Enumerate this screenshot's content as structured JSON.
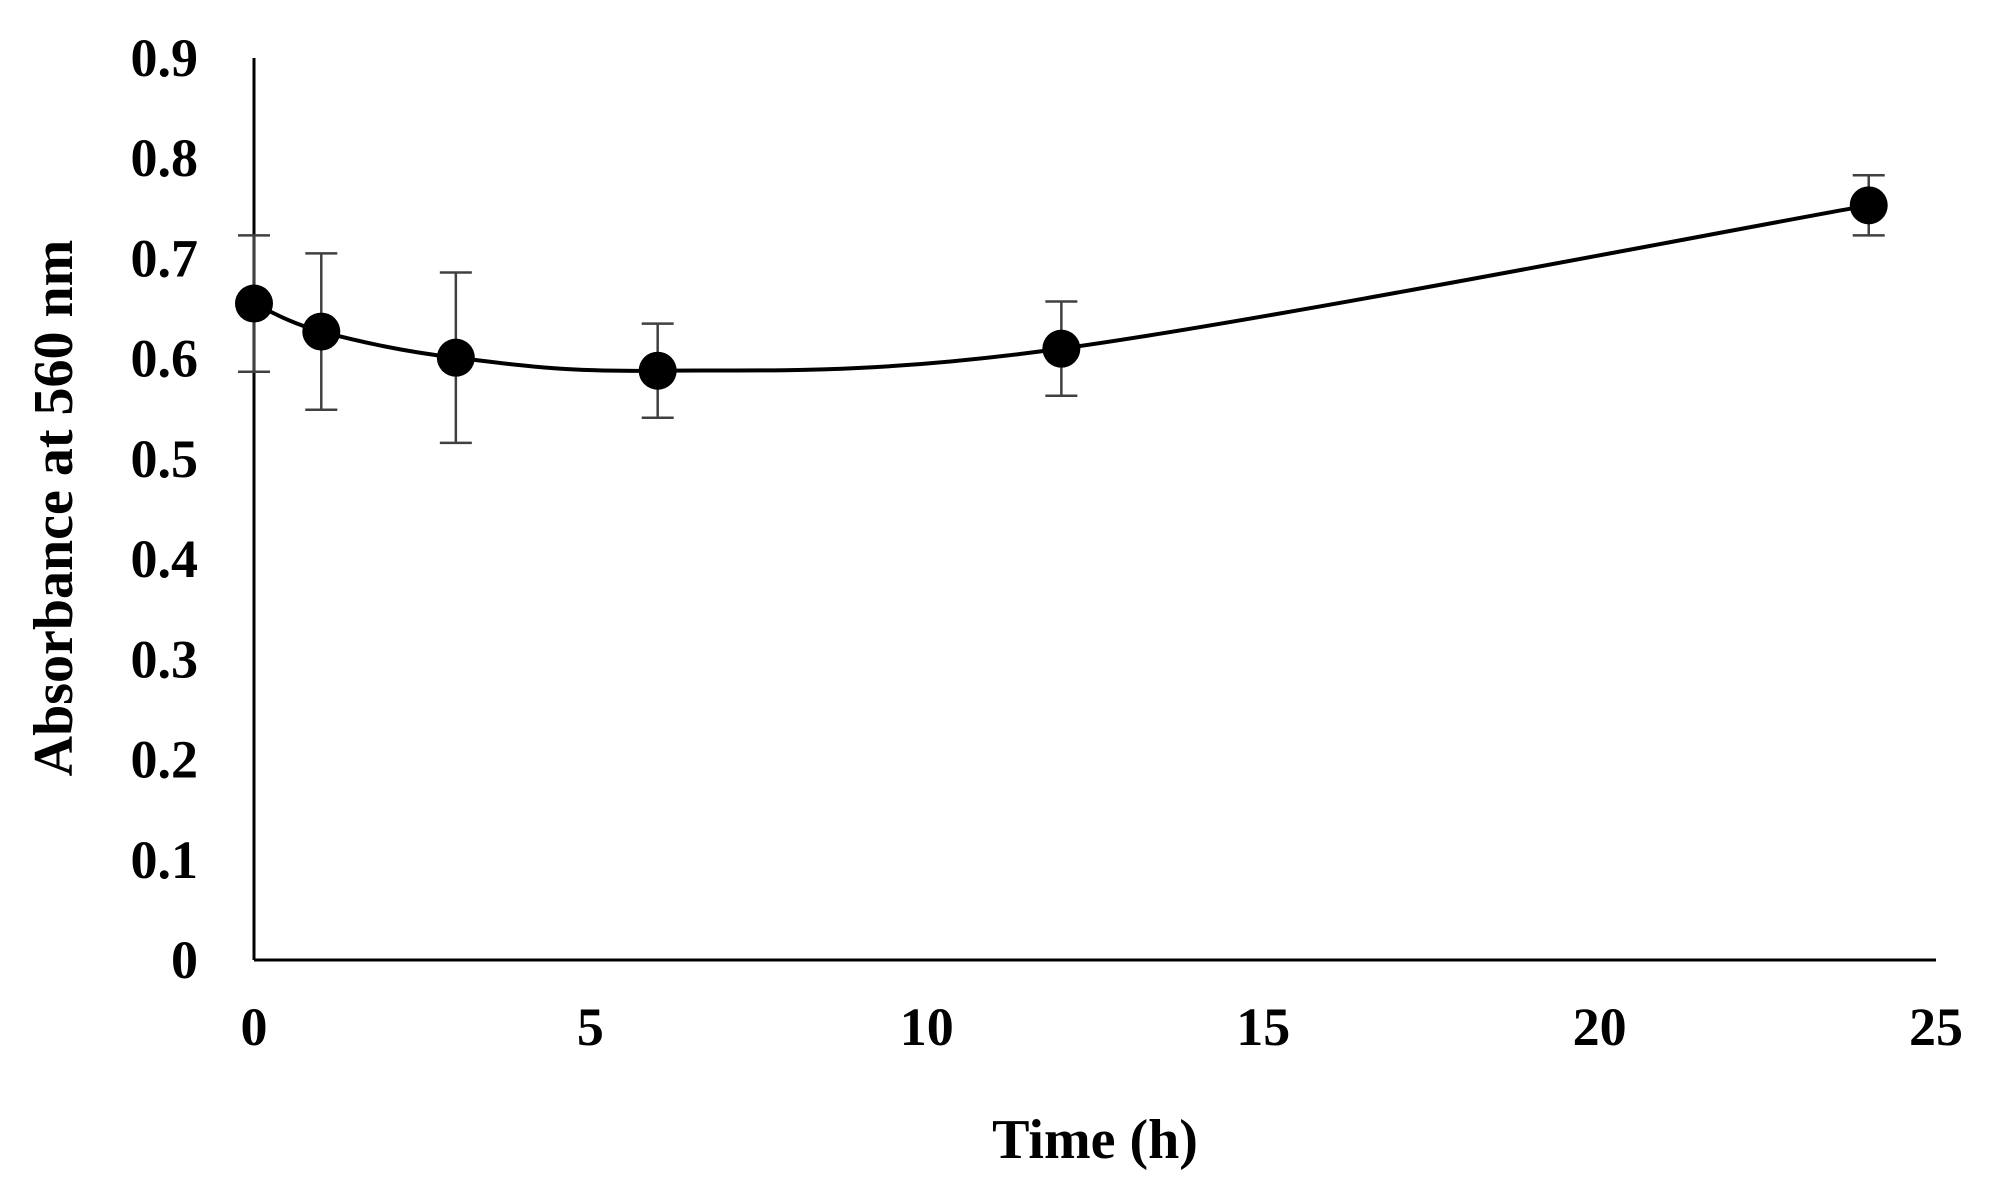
{
  "chart_data": {
    "type": "scatter",
    "title": "",
    "xlabel": "Time (h)",
    "ylabel": "Absorbance  at 560 nm",
    "xlim": [
      0,
      25
    ],
    "ylim": [
      0,
      0.9
    ],
    "xticks": [
      "0",
      "5",
      "10",
      "15",
      "20",
      "25"
    ],
    "yticks": [
      "0",
      "0.1",
      "0.2",
      "0.3",
      "0.4",
      "0.5",
      "0.6",
      "0.7",
      "0.8",
      "0.9"
    ],
    "grid": false,
    "smoothed_line": true,
    "series": [
      {
        "name": "Absorbance",
        "x": [
          0,
          1,
          3,
          6,
          12,
          24
        ],
        "y": [
          0.655,
          0.627,
          0.601,
          0.588,
          0.61,
          0.753
        ],
        "error": [
          0.068,
          0.078,
          0.085,
          0.047,
          0.047,
          0.03
        ]
      }
    ]
  }
}
